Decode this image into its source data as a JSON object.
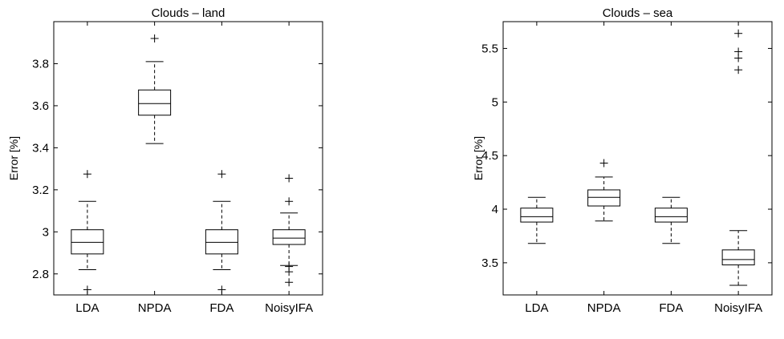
{
  "chart_data": [
    {
      "type": "boxplot",
      "title": "Clouds – land",
      "ylabel": "Error [%]",
      "xlabel": "",
      "categories": [
        "LDA",
        "NPDA",
        "FDA",
        "NoisyIFA"
      ],
      "ylim": [
        2.7,
        4.0
      ],
      "yticks": [
        2.8,
        3.0,
        3.2,
        3.4,
        3.6,
        3.8
      ],
      "ytick_labels": [
        "2.8",
        "3",
        "3.2",
        "3.4",
        "3.6",
        "3.8"
      ],
      "grid": false,
      "boxes": [
        {
          "category": "LDA",
          "whisker_low": 2.82,
          "q1": 2.895,
          "median": 2.95,
          "q3": 3.01,
          "whisker_high": 3.145,
          "outliers": [
            2.725,
            3.275
          ]
        },
        {
          "category": "NPDA",
          "whisker_low": 3.42,
          "q1": 3.555,
          "median": 3.61,
          "q3": 3.675,
          "whisker_high": 3.81,
          "outliers": [
            3.92
          ]
        },
        {
          "category": "FDA",
          "whisker_low": 2.82,
          "q1": 2.895,
          "median": 2.95,
          "q3": 3.01,
          "whisker_high": 3.145,
          "outliers": [
            2.725,
            3.275
          ]
        },
        {
          "category": "NoisyIFA",
          "whisker_low": 2.84,
          "q1": 2.94,
          "median": 2.97,
          "q3": 3.01,
          "whisker_high": 3.09,
          "outliers": [
            2.76,
            2.81,
            2.835,
            3.145,
            3.255
          ]
        }
      ]
    },
    {
      "type": "boxplot",
      "title": "Clouds – sea",
      "ylabel": "Error [%]",
      "xlabel": "",
      "categories": [
        "LDA",
        "NPDA",
        "FDA",
        "NoisyIFA"
      ],
      "ylim": [
        3.2,
        5.75
      ],
      "yticks": [
        3.5,
        4.0,
        4.5,
        5.0,
        5.5
      ],
      "ytick_labels": [
        "3.5",
        "4",
        "4.5",
        "5",
        "5.5"
      ],
      "grid": false,
      "boxes": [
        {
          "category": "LDA",
          "whisker_low": 3.68,
          "q1": 3.88,
          "median": 3.93,
          "q3": 4.01,
          "whisker_high": 4.11,
          "outliers": []
        },
        {
          "category": "NPDA",
          "whisker_low": 3.89,
          "q1": 4.03,
          "median": 4.11,
          "q3": 4.18,
          "whisker_high": 4.3,
          "outliers": [
            4.43
          ]
        },
        {
          "category": "FDA",
          "whisker_low": 3.68,
          "q1": 3.88,
          "median": 3.93,
          "q3": 4.01,
          "whisker_high": 4.11,
          "outliers": []
        },
        {
          "category": "NoisyIFA",
          "whisker_low": 3.29,
          "q1": 3.48,
          "median": 3.53,
          "q3": 3.62,
          "whisker_high": 3.8,
          "outliers": [
            5.3,
            5.41,
            5.47,
            5.64
          ]
        }
      ]
    }
  ]
}
